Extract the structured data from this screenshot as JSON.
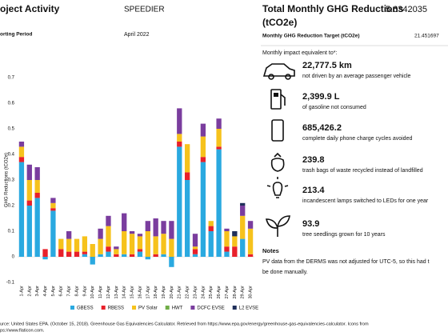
{
  "header": {
    "title": "oject Activity",
    "project": "SPEEDIER",
    "period_label": "orting Period",
    "period": "April 2022"
  },
  "chart_data": {
    "type": "bar",
    "stacked": true,
    "y_label": "GHG Reductions (tCO2e)",
    "categories": [
      "1-Apr",
      "2-Apr",
      "3-Apr",
      "4-Apr",
      "5-Apr",
      "6-Apr",
      "7-Apr",
      "8-Apr",
      "9-Apr",
      "10-Apr",
      "11-Apr",
      "12-Apr",
      "13-Apr",
      "14-Apr",
      "15-Apr",
      "16-Apr",
      "17-Apr",
      "18-Apr",
      "19-Apr",
      "20-Apr",
      "21-Apr",
      "22-Apr",
      "23-Apr",
      "24-Apr",
      "25-Apr",
      "26-Apr",
      "27-Apr",
      "28-Apr",
      "29-Apr",
      "30-Apr"
    ],
    "series": [
      {
        "name": "GBESS",
        "color": "#2aa9e0",
        "values": [
          0.37,
          0.2,
          0.23,
          -0.01,
          0.18,
          0,
          0,
          0,
          0.01,
          -0.03,
          0.01,
          0.02,
          0,
          0.01,
          0,
          0.02,
          -0.01,
          0,
          0.01,
          -0.04,
          0.43,
          0.3,
          0.01,
          0.37,
          0.1,
          0.42,
          0.02,
          0,
          0.07,
          0
        ]
      },
      {
        "name": "RBESS",
        "color": "#e8202a",
        "values": [
          0.02,
          0.02,
          0.02,
          0.03,
          0.01,
          0.03,
          0.02,
          0.02,
          0.01,
          0,
          0,
          0.02,
          0.01,
          0,
          0.01,
          0.01,
          0,
          0.01,
          0,
          0,
          0.02,
          0.03,
          0.02,
          0.02,
          0.02,
          0.01,
          0.02,
          0.04,
          0,
          0.01
        ]
      },
      {
        "name": "PV Solar",
        "color": "#f6c21c",
        "values": [
          0.04,
          0.08,
          0.05,
          0,
          0.02,
          0.04,
          0.05,
          0.05,
          0.06,
          0.05,
          0.06,
          0.08,
          0.02,
          0.09,
          0.08,
          0.05,
          0.1,
          0.07,
          0.08,
          0.07,
          0.03,
          0.11,
          0.01,
          0.08,
          0.02,
          0.07,
          0.06,
          0.04,
          0.09,
          0.1
        ]
      },
      {
        "name": "HWT",
        "color": "#70ad47",
        "values": [
          0,
          0,
          0,
          0,
          0,
          0,
          0,
          0,
          0,
          0,
          0,
          0,
          0,
          0,
          0,
          0,
          0,
          0,
          0,
          0,
          0,
          0,
          0,
          0,
          0,
          0,
          0,
          0,
          0,
          0
        ]
      },
      {
        "name": "DCFC EVSE",
        "color": "#7a3d9e",
        "values": [
          0.02,
          0.06,
          0.05,
          0,
          0.02,
          0,
          0.03,
          0,
          0,
          0,
          0.04,
          0.04,
          0.01,
          0.07,
          0.01,
          0.01,
          0.04,
          0.07,
          0.05,
          0.07,
          0.1,
          0,
          0.05,
          0.05,
          0,
          0.04,
          0.01,
          0,
          0.04,
          0.03
        ]
      },
      {
        "name": "L2 EVSE",
        "color": "#1f2f5a",
        "values": [
          0,
          0,
          0,
          0,
          0,
          0,
          0,
          0,
          0,
          0,
          0,
          0,
          0,
          0,
          0,
          0,
          0,
          0,
          0,
          0,
          0,
          0,
          0,
          0,
          0,
          0,
          0,
          0.02,
          0.01,
          0
        ]
      }
    ],
    "ylim": [
      -0.1,
      0.7
    ],
    "yticks": [
      -0.1,
      0,
      0.1,
      0.2,
      0.3,
      0.4,
      0.5,
      0.6,
      0.7
    ],
    "grid": false
  },
  "panel": {
    "total_label": "Total Monthly GHG Reductions",
    "total_unit": "(tCO2e)",
    "total_value": "5.6342035",
    "target_label": "Monthly GHG Reduction Target (tCO2e)",
    "target_value": "21.451697",
    "intro": "Monthly impact equivalent to*:",
    "items": [
      {
        "value": "22,777.5 km",
        "text": "not driven by an average passenger vehicle"
      },
      {
        "value": "2,399.9 L",
        "text": "of gasoline not consumed"
      },
      {
        "value": "685,426.2",
        "text": "complete daily phone charge cycles avoided"
      },
      {
        "value": "239.8",
        "text": "trash bags of waste recycled instead of landfilled"
      },
      {
        "value": "213.4",
        "text": "incandescent lamps switched to LEDs for one year"
      },
      {
        "value": "93.9",
        "text": "tree seedlings grown for 10 years"
      }
    ],
    "notes_title": "Notes",
    "notes": [
      "PV data from the DERMS was not adjusted for UTC-5, so this had t",
      "be done manually."
    ]
  },
  "footer": [
    "urce: United States EPA. (October 15, 2018). Greenhouse Gas Equivalencies Calculator. Retrieved from https://www.epa.gov/energy/greenhouse-gas-equivalencies-calculator. Icons from",
    "ps://www.flaticon.com."
  ]
}
